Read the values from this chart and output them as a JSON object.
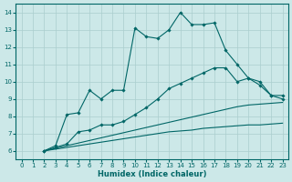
{
  "xlabel": "Humidex (Indice chaleur)",
  "ylabel": "",
  "xlim": [
    -0.5,
    23.5
  ],
  "ylim": [
    5.5,
    14.5
  ],
  "xticks": [
    0,
    1,
    2,
    3,
    4,
    5,
    6,
    7,
    8,
    9,
    10,
    11,
    12,
    13,
    14,
    15,
    16,
    17,
    18,
    19,
    20,
    21,
    22,
    23
  ],
  "yticks": [
    6,
    7,
    8,
    9,
    10,
    11,
    12,
    13,
    14
  ],
  "bg_color": "#cce8e8",
  "line_color": "#006666",
  "grid_color": "#aacece",
  "line1_x": [
    2,
    3,
    4,
    5,
    6,
    7,
    8,
    9,
    10,
    11,
    12,
    13,
    14,
    15,
    16,
    17,
    18,
    19,
    20,
    21,
    22,
    23
  ],
  "line1_y": [
    6.0,
    6.3,
    8.1,
    8.2,
    9.5,
    9.0,
    9.5,
    9.5,
    13.1,
    12.6,
    12.5,
    13.0,
    14.0,
    13.3,
    13.3,
    13.4,
    11.8,
    11.0,
    10.2,
    10.0,
    9.2,
    9.2
  ],
  "line2_x": [
    2,
    3,
    4,
    5,
    6,
    7,
    8,
    9,
    10,
    11,
    12,
    13,
    14,
    15,
    16,
    17,
    18,
    19,
    20,
    21,
    22,
    23
  ],
  "line2_y": [
    6.0,
    6.2,
    6.4,
    7.1,
    7.2,
    7.5,
    7.5,
    7.7,
    8.1,
    8.5,
    9.0,
    9.6,
    9.9,
    10.2,
    10.5,
    10.8,
    10.8,
    10.0,
    10.2,
    9.8,
    9.2,
    9.0
  ],
  "line3_x": [
    2,
    3,
    4,
    5,
    6,
    7,
    8,
    9,
    10,
    11,
    12,
    13,
    14,
    15,
    16,
    17,
    18,
    19,
    20,
    21,
    22,
    23
  ],
  "line3_y": [
    6.0,
    6.15,
    6.3,
    6.45,
    6.6,
    6.75,
    6.9,
    7.05,
    7.2,
    7.35,
    7.5,
    7.65,
    7.8,
    7.95,
    8.1,
    8.25,
    8.4,
    8.55,
    8.65,
    8.7,
    8.75,
    8.8
  ],
  "line4_x": [
    2,
    3,
    4,
    5,
    6,
    7,
    8,
    9,
    10,
    11,
    12,
    13,
    14,
    15,
    16,
    17,
    18,
    19,
    20,
    21,
    22,
    23
  ],
  "line4_y": [
    6.0,
    6.1,
    6.2,
    6.3,
    6.4,
    6.5,
    6.6,
    6.7,
    6.8,
    6.9,
    7.0,
    7.1,
    7.15,
    7.2,
    7.3,
    7.35,
    7.4,
    7.45,
    7.5,
    7.5,
    7.55,
    7.6
  ]
}
